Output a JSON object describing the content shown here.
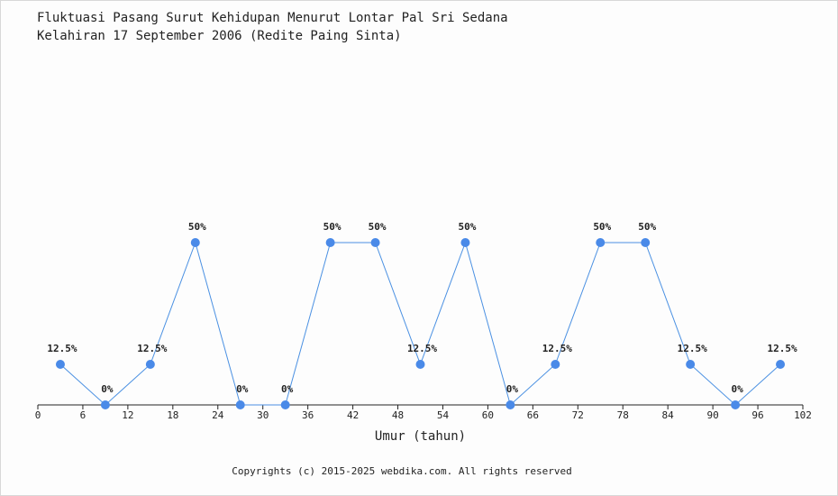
{
  "chart_data": {
    "type": "line",
    "title": "Fluktuasi Pasang Surut Kehidupan Menurut Lontar Pal Sri Sedana",
    "subtitle": "Kelahiran 17 September 2006 (Redite Paing Sinta)",
    "xlabel": "Umur (tahun)",
    "ylabel": "",
    "xlim": [
      0,
      102
    ],
    "ylim": [
      0,
      100
    ],
    "x_ticks": [
      0,
      6,
      12,
      18,
      24,
      30,
      36,
      42,
      48,
      54,
      60,
      66,
      72,
      78,
      84,
      90,
      96,
      102
    ],
    "grid": false,
    "series": [
      {
        "x": [
          3,
          9,
          15,
          21,
          27,
          33,
          39,
          45,
          51,
          57,
          63,
          69,
          75,
          81,
          87,
          93,
          99
        ],
        "values": [
          12.5,
          0,
          12.5,
          50,
          0,
          0,
          50,
          50,
          12.5,
          50,
          0,
          12.5,
          50,
          50,
          12.5,
          0,
          12.5
        ],
        "labels": [
          "12.5%",
          "0%",
          "12.5%",
          "50%",
          "0%",
          "0%",
          "50%",
          "50%",
          "12.5%",
          "50%",
          "0%",
          "12.5%",
          "50%",
          "50%",
          "12.5%",
          "0%",
          "12.5%"
        ]
      }
    ],
    "colors": {
      "line": "#4a90e2",
      "marker": "#4a8ae8",
      "axis": "#222222"
    }
  },
  "footer": "Copyrights (c) 2015-2025 webdika.com. All rights reserved"
}
